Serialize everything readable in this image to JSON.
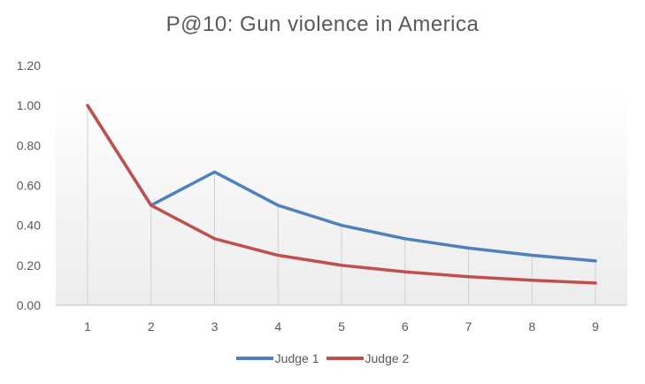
{
  "chart_data": {
    "type": "line",
    "title": "P@10: Gun violence  in America",
    "xlabel": "",
    "ylabel": "",
    "categories": [
      "1",
      "2",
      "3",
      "4",
      "5",
      "6",
      "7",
      "8",
      "9"
    ],
    "x": [
      1,
      2,
      3,
      4,
      5,
      6,
      7,
      8,
      9
    ],
    "ylim": [
      0,
      1.2
    ],
    "yticks": [
      "0.00",
      "0.20",
      "0.40",
      "0.60",
      "0.80",
      "1.00",
      "1.20"
    ],
    "grid": "vertical drop lines at each category",
    "legend_position": "bottom",
    "series": [
      {
        "name": "Judge 1",
        "color": "#4f81bd",
        "values": [
          1.0,
          0.5,
          0.667,
          0.5,
          0.4,
          0.333,
          0.286,
          0.25,
          0.222
        ]
      },
      {
        "name": "Judge 2",
        "color": "#c0504d",
        "values": [
          1.0,
          0.5,
          0.333,
          0.25,
          0.2,
          0.167,
          0.143,
          0.125,
          0.111
        ]
      }
    ]
  }
}
